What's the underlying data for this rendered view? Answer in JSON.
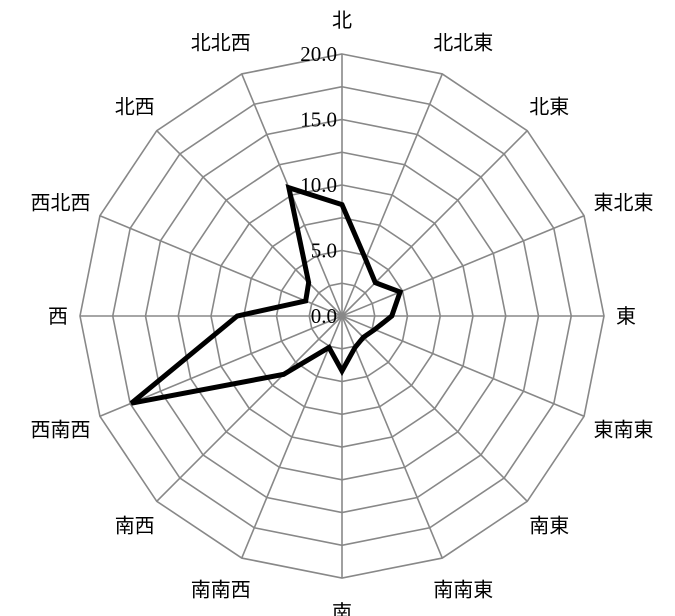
{
  "chart_data": {
    "type": "radar",
    "categories": [
      "北",
      "北北東",
      "北東",
      "東北東",
      "東",
      "東南東",
      "南東",
      "南南東",
      "南",
      "南南西",
      "南西",
      "西南西",
      "西",
      "西北西",
      "北西",
      "北北西"
    ],
    "series": [
      {
        "values": [
          8.5,
          4.7,
          3.6,
          4.8,
          3.8,
          2.7,
          2.3,
          2.6,
          4.2,
          2.6,
          6.3,
          17.4,
          8.0,
          3.0,
          3.6,
          10.6
        ]
      }
    ],
    "r_ticks": [
      "0.0",
      "5.0",
      "10.0",
      "15.0",
      "20.0"
    ],
    "r_values": [
      0,
      5,
      10,
      15,
      20
    ],
    "rlim": [
      0,
      20
    ],
    "grid": true,
    "colors": {
      "series": "#000000",
      "grid": "#888888"
    }
  }
}
